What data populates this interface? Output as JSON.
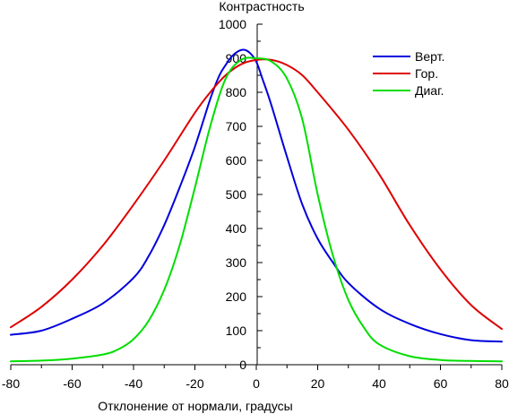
{
  "chart_data": {
    "type": "line",
    "xlabel": "Отклонение от нормали, градусы",
    "ylabel": "Контрастность",
    "xlim": [
      -80,
      80
    ],
    "ylim": [
      0,
      1000
    ],
    "x_ticks": [
      -80,
      -60,
      -40,
      -20,
      0,
      20,
      40,
      60,
      80
    ],
    "y_ticks": [
      0,
      100,
      200,
      300,
      400,
      500,
      600,
      700,
      800,
      900,
      1000
    ],
    "grid": false,
    "legend_position": "top-right",
    "series": [
      {
        "name": "Верт.",
        "color": "#0000dd",
        "x": [
          -80,
          -70,
          -60,
          -50,
          -40,
          -35,
          -30,
          -25,
          -20,
          -15,
          -12,
          -10,
          -8,
          -6,
          -4,
          -2,
          0,
          2,
          5,
          10,
          15,
          20,
          25,
          30,
          40,
          50,
          60,
          70,
          80
        ],
        "y": [
          88,
          100,
          135,
          180,
          255,
          320,
          410,
          520,
          640,
          780,
          850,
          880,
          905,
          920,
          925,
          915,
          890,
          840,
          760,
          610,
          470,
          370,
          300,
          240,
          165,
          120,
          90,
          72,
          68
        ]
      },
      {
        "name": "Гор.",
        "color": "#dd0000",
        "x": [
          -80,
          -70,
          -60,
          -50,
          -40,
          -30,
          -20,
          -15,
          -10,
          -5,
          0,
          5,
          10,
          15,
          20,
          30,
          40,
          50,
          60,
          70,
          80
        ],
        "y": [
          110,
          170,
          250,
          350,
          470,
          600,
          740,
          800,
          850,
          882,
          895,
          895,
          880,
          850,
          800,
          690,
          560,
          410,
          280,
          175,
          105
        ]
      },
      {
        "name": "Диаг.",
        "color": "#00dd00",
        "x": [
          -80,
          -70,
          -60,
          -50,
          -45,
          -40,
          -35,
          -30,
          -25,
          -20,
          -15,
          -10,
          -5,
          0,
          5,
          10,
          15,
          20,
          25,
          30,
          35,
          40,
          50,
          60,
          70,
          80
        ],
        "y": [
          10,
          12,
          18,
          30,
          45,
          75,
          130,
          220,
          350,
          520,
          700,
          840,
          895,
          900,
          890,
          840,
          720,
          500,
          320,
          190,
          110,
          60,
          25,
          14,
          11,
          10
        ]
      }
    ]
  }
}
